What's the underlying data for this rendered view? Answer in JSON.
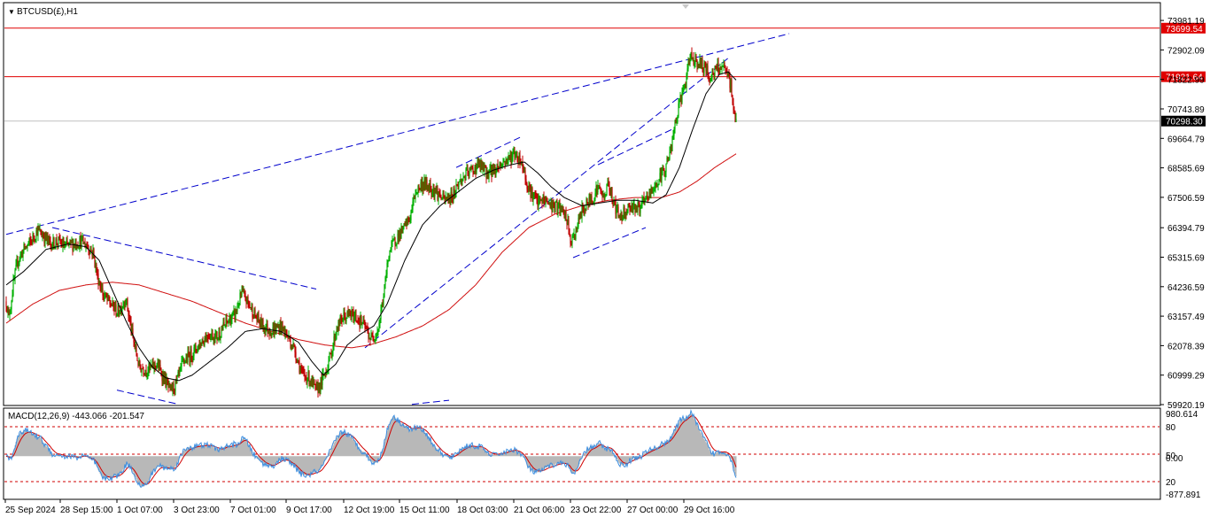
{
  "window": {
    "symbol_label": "BTCUSD(£),H1",
    "arrow_glyph": "▼"
  },
  "macd": {
    "label": "MACD(12,26,9) -443.066 -201.547",
    "scale_top": "980.614",
    "scale_bottom": "-877.891",
    "level_80": "80",
    "level_50": "50",
    "level_20": "20",
    "level_0": "0.00"
  },
  "colors": {
    "background": "#ffffff",
    "bull_candle": "#00b000",
    "bear_candle": "#c00000",
    "ma_fast": "#000000",
    "ma_slow": "#d01010",
    "trendline": "#0000cc",
    "hline": "#e00000",
    "price_line": "#c0c0c0",
    "macd_hist": "#b8b8b8",
    "macd_signal": "#d00000",
    "macd_line": "#3c8ee0"
  },
  "chart_data": {
    "type": "candlestick",
    "timeframe": "H1",
    "ylim": [
      59920.19,
      74600
    ],
    "y_ticks": [
      "73981.19",
      "72902.09",
      "71822.99",
      "70743.89",
      "69664.79",
      "68585.69",
      "67506.59",
      "66394.79",
      "65315.69",
      "64236.59",
      "63157.49",
      "62078.39",
      "60999.29",
      "59920.19"
    ],
    "x_ticks": [
      "25 Sep 2024",
      "28 Sep 15:00",
      "1 Oct 07:00",
      "3 Oct 23:00",
      "7 Oct 01:00",
      "9 Oct 17:00",
      "12 Oct 19:00",
      "15 Oct 11:00",
      "18 Oct 03:00",
      "21 Oct 06:00",
      "23 Oct 22:00",
      "27 Oct 00:00",
      "29 Oct 16:00"
    ],
    "horizontal_levels": [
      {
        "label": "73699.54",
        "value": 73699.54
      },
      {
        "label": "71921.64",
        "value": 71921.64
      }
    ],
    "current_price": {
      "label": "70298.30",
      "value": 70298.3
    },
    "close_path": [
      [
        0,
        63700
      ],
      [
        3,
        63100
      ],
      [
        8,
        64300
      ],
      [
        13,
        65200
      ],
      [
        20,
        65600
      ],
      [
        28,
        65900
      ],
      [
        35,
        66300
      ],
      [
        42,
        66100
      ],
      [
        50,
        65800
      ],
      [
        58,
        65900
      ],
      [
        66,
        65700
      ],
      [
        75,
        65800
      ],
      [
        85,
        65900
      ],
      [
        92,
        65700
      ],
      [
        98,
        65500
      ],
      [
        103,
        64600
      ],
      [
        110,
        63900
      ],
      [
        118,
        63600
      ],
      [
        126,
        63300
      ],
      [
        135,
        63800
      ],
      [
        142,
        62500
      ],
      [
        150,
        61300
      ],
      [
        160,
        61200
      ],
      [
        170,
        61400
      ],
      [
        178,
        60900
      ],
      [
        185,
        60400
      ],
      [
        192,
        60700
      ],
      [
        200,
        61500
      ],
      [
        210,
        61800
      ],
      [
        220,
        62200
      ],
      [
        228,
        62500
      ],
      [
        238,
        62400
      ],
      [
        248,
        62900
      ],
      [
        258,
        63200
      ],
      [
        266,
        64000
      ],
      [
        274,
        63600
      ],
      [
        282,
        63100
      ],
      [
        290,
        62800
      ],
      [
        300,
        62600
      ],
      [
        310,
        62800
      ],
      [
        318,
        62400
      ],
      [
        326,
        61900
      ],
      [
        334,
        61000
      ],
      [
        342,
        60900
      ],
      [
        350,
        60400
      ],
      [
        358,
        60900
      ],
      [
        366,
        61700
      ],
      [
        373,
        62700
      ],
      [
        380,
        63100
      ],
      [
        388,
        63200
      ],
      [
        396,
        63100
      ],
      [
        404,
        62800
      ],
      [
        412,
        62300
      ],
      [
        420,
        62700
      ],
      [
        426,
        63900
      ],
      [
        432,
        65500
      ],
      [
        440,
        66000
      ],
      [
        448,
        66300
      ],
      [
        456,
        66800
      ],
      [
        462,
        67700
      ],
      [
        470,
        68000
      ],
      [
        478,
        67900
      ],
      [
        486,
        67700
      ],
      [
        494,
        67400
      ],
      [
        502,
        67500
      ],
      [
        510,
        68000
      ],
      [
        518,
        68300
      ],
      [
        526,
        68500
      ],
      [
        534,
        68700
      ],
      [
        542,
        68400
      ],
      [
        550,
        68500
      ],
      [
        558,
        68700
      ],
      [
        566,
        68900
      ],
      [
        574,
        69100
      ],
      [
        582,
        68800
      ],
      [
        588,
        68000
      ],
      [
        594,
        67600
      ],
      [
        600,
        67300
      ],
      [
        608,
        67400
      ],
      [
        616,
        67200
      ],
      [
        624,
        67100
      ],
      [
        632,
        66800
      ],
      [
        638,
        65800
      ],
      [
        644,
        66400
      ],
      [
        650,
        67000
      ],
      [
        656,
        67300
      ],
      [
        662,
        67500
      ],
      [
        668,
        67900
      ],
      [
        674,
        67500
      ],
      [
        680,
        68000
      ],
      [
        686,
        67300
      ],
      [
        692,
        66800
      ],
      [
        698,
        67000
      ],
      [
        706,
        67200
      ],
      [
        714,
        67100
      ],
      [
        722,
        67400
      ],
      [
        730,
        67800
      ],
      [
        738,
        68200
      ],
      [
        744,
        68600
      ],
      [
        750,
        69200
      ],
      [
        756,
        70300
      ],
      [
        762,
        71200
      ],
      [
        768,
        71800
      ],
      [
        772,
        72700
      ],
      [
        776,
        72600
      ],
      [
        782,
        72400
      ],
      [
        788,
        72300
      ],
      [
        794,
        71900
      ],
      [
        800,
        72100
      ],
      [
        806,
        72300
      ],
      [
        810,
        72200
      ],
      [
        814,
        72000
      ],
      [
        818,
        71600
      ],
      [
        821,
        70700
      ],
      [
        824,
        70300
      ]
    ],
    "ma_fast_path": [
      [
        0,
        64300
      ],
      [
        20,
        64800
      ],
      [
        45,
        65600
      ],
      [
        70,
        65800
      ],
      [
        90,
        65700
      ],
      [
        105,
        65200
      ],
      [
        120,
        64100
      ],
      [
        135,
        63000
      ],
      [
        150,
        62000
      ],
      [
        165,
        61300
      ],
      [
        180,
        60900
      ],
      [
        195,
        60800
      ],
      [
        210,
        61000
      ],
      [
        230,
        61500
      ],
      [
        250,
        62000
      ],
      [
        270,
        62600
      ],
      [
        290,
        62700
      ],
      [
        310,
        62600
      ],
      [
        330,
        62200
      ],
      [
        345,
        61500
      ],
      [
        358,
        61000
      ],
      [
        372,
        61400
      ],
      [
        385,
        62100
      ],
      [
        400,
        62500
      ],
      [
        415,
        62800
      ],
      [
        430,
        63600
      ],
      [
        450,
        65200
      ],
      [
        470,
        66500
      ],
      [
        490,
        67200
      ],
      [
        510,
        67700
      ],
      [
        530,
        68200
      ],
      [
        550,
        68500
      ],
      [
        570,
        68700
      ],
      [
        585,
        68800
      ],
      [
        600,
        68400
      ],
      [
        615,
        67900
      ],
      [
        630,
        67500
      ],
      [
        650,
        67200
      ],
      [
        670,
        67300
      ],
      [
        690,
        67400
      ],
      [
        710,
        67400
      ],
      [
        730,
        67300
      ],
      [
        745,
        67600
      ],
      [
        760,
        68600
      ],
      [
        775,
        70000
      ],
      [
        790,
        71300
      ],
      [
        805,
        72000
      ],
      [
        815,
        72100
      ],
      [
        824,
        71800
      ]
    ],
    "ma_slow_path": [
      [
        0,
        62900
      ],
      [
        30,
        63600
      ],
      [
        60,
        64100
      ],
      [
        90,
        64300
      ],
      [
        120,
        64400
      ],
      [
        150,
        64300
      ],
      [
        180,
        64000
      ],
      [
        210,
        63700
      ],
      [
        240,
        63300
      ],
      [
        270,
        62900
      ],
      [
        300,
        62600
      ],
      [
        330,
        62300
      ],
      [
        360,
        62100
      ],
      [
        390,
        62000
      ],
      [
        410,
        62100
      ],
      [
        440,
        62400
      ],
      [
        470,
        62800
      ],
      [
        500,
        63400
      ],
      [
        530,
        64300
      ],
      [
        560,
        65500
      ],
      [
        590,
        66400
      ],
      [
        620,
        66900
      ],
      [
        650,
        67200
      ],
      [
        680,
        67400
      ],
      [
        710,
        67500
      ],
      [
        740,
        67500
      ],
      [
        760,
        67700
      ],
      [
        780,
        68100
      ],
      [
        800,
        68600
      ],
      [
        824,
        69100
      ]
    ],
    "trendlines": [
      {
        "from": [
          0,
          66150
        ],
        "to": [
          884,
          73500
        ]
      },
      {
        "from": [
          52,
          66400
        ],
        "to": [
          350,
          64150
        ]
      },
      {
        "from": [
          125,
          60450
        ],
        "to": [
          192,
          59950
        ]
      },
      {
        "from": [
          405,
          62000
        ],
        "to": [
          815,
          72600
        ]
      },
      {
        "from": [
          508,
          68600
        ],
        "to": [
          580,
          69700
        ]
      },
      {
        "from": [
          640,
          65300
        ],
        "to": [
          722,
          66400
        ]
      },
      {
        "from": [
          668,
          68700
        ],
        "to": [
          752,
          70000
        ]
      },
      {
        "from": [
          458,
          59930
        ],
        "to": [
          500,
          60080
        ]
      }
    ],
    "macd_ylim": [
      -877.891,
      980.614
    ]
  }
}
